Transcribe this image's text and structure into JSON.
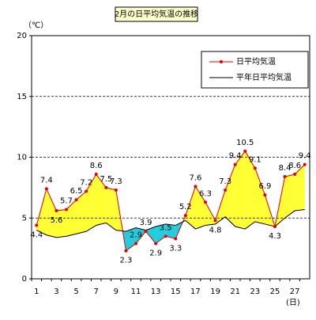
{
  "chart_data": {
    "type": "line",
    "title": "2月の日平均気温の推移",
    "y_label": "（℃）",
    "x_label": "(日)",
    "categories": [
      "1",
      null,
      "3",
      null,
      "5",
      null,
      "7",
      null,
      "9",
      null,
      "11",
      null,
      "13",
      null,
      "15",
      null,
      "17",
      null,
      "19",
      null,
      "21",
      null,
      "23",
      null,
      "25",
      null,
      "27",
      null
    ],
    "series": [
      {
        "name": "日平均気温",
        "color": "#e00000",
        "values": [
          4.4,
          7.4,
          5.6,
          5.7,
          6.5,
          7.2,
          8.6,
          7.5,
          7.3,
          2.3,
          2.9,
          3.9,
          2.9,
          3.5,
          3.3,
          5.2,
          7.6,
          6.3,
          4.8,
          7.3,
          9.4,
          10.5,
          9.1,
          6.9,
          4.3,
          8.4,
          8.6,
          9.4
        ]
      },
      {
        "name": "平年日平均気温",
        "color": "#000000",
        "values": [
          4.0,
          3.6,
          3.4,
          3.5,
          3.7,
          3.9,
          4.4,
          4.6,
          4.0,
          3.9,
          4.2,
          4.0,
          4.3,
          4.5,
          4.4,
          4.8,
          4.1,
          4.4,
          4.5,
          5.1,
          4.3,
          4.1,
          4.7,
          4.5,
          4.3,
          5.0,
          5.6,
          5.7
        ]
      }
    ],
    "above_color": "#ffff33",
    "below_color": "#22ccdd",
    "ylim": [
      0,
      20
    ],
    "yticks": [
      0,
      5,
      10,
      15,
      20
    ],
    "grid": true,
    "legend": "upper right"
  }
}
